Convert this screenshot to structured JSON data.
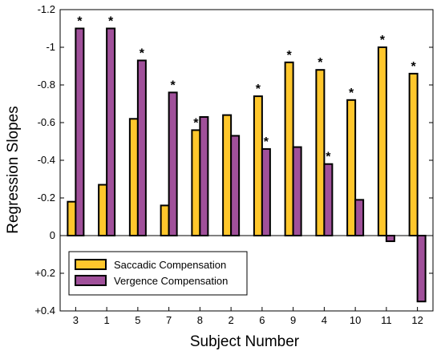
{
  "chart_data": {
    "type": "bar",
    "xlabel": "Subject Number",
    "ylabel": "Regression Slopes",
    "categories": [
      "3",
      "1",
      "5",
      "7",
      "8",
      "2",
      "6",
      "9",
      "4",
      "10",
      "11",
      "12"
    ],
    "y_axis": {
      "range": [
        0.4,
        -1.2
      ],
      "inverted": true,
      "ticks": [
        -1.2,
        -1,
        -0.8,
        -0.6,
        -0.4,
        -0.2,
        0,
        0.2,
        0.4
      ],
      "tick_labels": [
        "-1.2",
        "-1",
        "-0.8",
        "-0.6",
        "-0.4",
        "-0.2",
        "0",
        "+0.2",
        "+0.4"
      ]
    },
    "series": [
      {
        "name": "Saccadic Compensation",
        "color": "#FFC72C",
        "values": [
          -0.18,
          -0.27,
          -0.62,
          -0.16,
          -0.56,
          -0.64,
          -0.74,
          -0.92,
          -0.88,
          -0.72,
          -1.0,
          -0.86
        ],
        "significant": [
          false,
          false,
          false,
          false,
          true,
          false,
          true,
          true,
          true,
          true,
          true,
          true
        ]
      },
      {
        "name": "Vergence Compensation",
        "color": "#A0509A",
        "values": [
          -1.1,
          -1.1,
          -0.93,
          -0.76,
          -0.63,
          -0.53,
          -0.46,
          -0.47,
          -0.38,
          -0.19,
          0.03,
          0.35
        ],
        "significant": [
          true,
          true,
          true,
          true,
          false,
          false,
          true,
          false,
          true,
          false,
          false,
          false
        ]
      }
    ],
    "significance_marker": "*",
    "legend_position": "bottom-left",
    "grid": false
  }
}
